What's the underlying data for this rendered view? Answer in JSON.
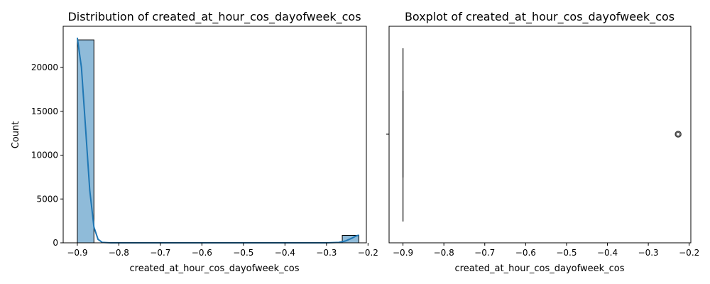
{
  "chart_data": [
    {
      "type": "bar",
      "title": "Distribution of created_at_hour_cos_dayofweek_cos",
      "xlabel": "created_at_hour_cos_dayofweek_cos",
      "ylabel": "Count",
      "xlim": [
        -0.934,
        -0.204
      ],
      "ylim": [
        0,
        24700
      ],
      "xticks": [
        -0.9,
        -0.8,
        -0.7,
        -0.6,
        -0.5,
        -0.4,
        -0.3,
        -0.2
      ],
      "xtick_labels": [
        "−0.9",
        "−0.8",
        "−0.7",
        "−0.6",
        "−0.5",
        "−0.4",
        "−0.3",
        "−0.2"
      ],
      "yticks": [
        0,
        5000,
        10000,
        15000,
        20000
      ],
      "ytick_labels": [
        "0",
        "5000",
        "10000",
        "15000",
        "20000"
      ],
      "bins": [
        {
          "x0": -0.9,
          "x1": -0.86,
          "count": 23150
        },
        {
          "x0": -0.262,
          "x1": -0.222,
          "count": 850
        }
      ],
      "kde": [
        [
          -0.9,
          23400
        ],
        [
          -0.89,
          20000
        ],
        [
          -0.88,
          13000
        ],
        [
          -0.87,
          6000
        ],
        [
          -0.86,
          1800
        ],
        [
          -0.85,
          400
        ],
        [
          -0.84,
          50
        ],
        [
          -0.82,
          0
        ],
        [
          -0.3,
          0
        ],
        [
          -0.27,
          50
        ],
        [
          -0.255,
          200
        ],
        [
          -0.24,
          500
        ],
        [
          -0.23,
          750
        ],
        [
          -0.222,
          880
        ]
      ],
      "bar_color": "#8fbbd9",
      "line_color": "#1f77b4",
      "grid": false
    },
    {
      "type": "boxplot",
      "title": "Boxplot of created_at_hour_cos_dayofweek_cos",
      "xlabel": "created_at_hour_cos_dayofweek_cos",
      "xlim": [
        -0.934,
        -0.196
      ],
      "xticks": [
        -0.9,
        -0.8,
        -0.7,
        -0.6,
        -0.5,
        -0.4,
        -0.3,
        -0.2
      ],
      "xtick_labels": [
        "−0.9",
        "−0.8",
        "−0.7",
        "−0.6",
        "−0.5",
        "−0.4",
        "−0.3",
        "−0.2"
      ],
      "box": {
        "min": -0.9,
        "q1": -0.9,
        "median": -0.9,
        "q3": -0.9,
        "max": -0.9
      },
      "outliers": [
        -0.227
      ],
      "grid": false
    }
  ]
}
